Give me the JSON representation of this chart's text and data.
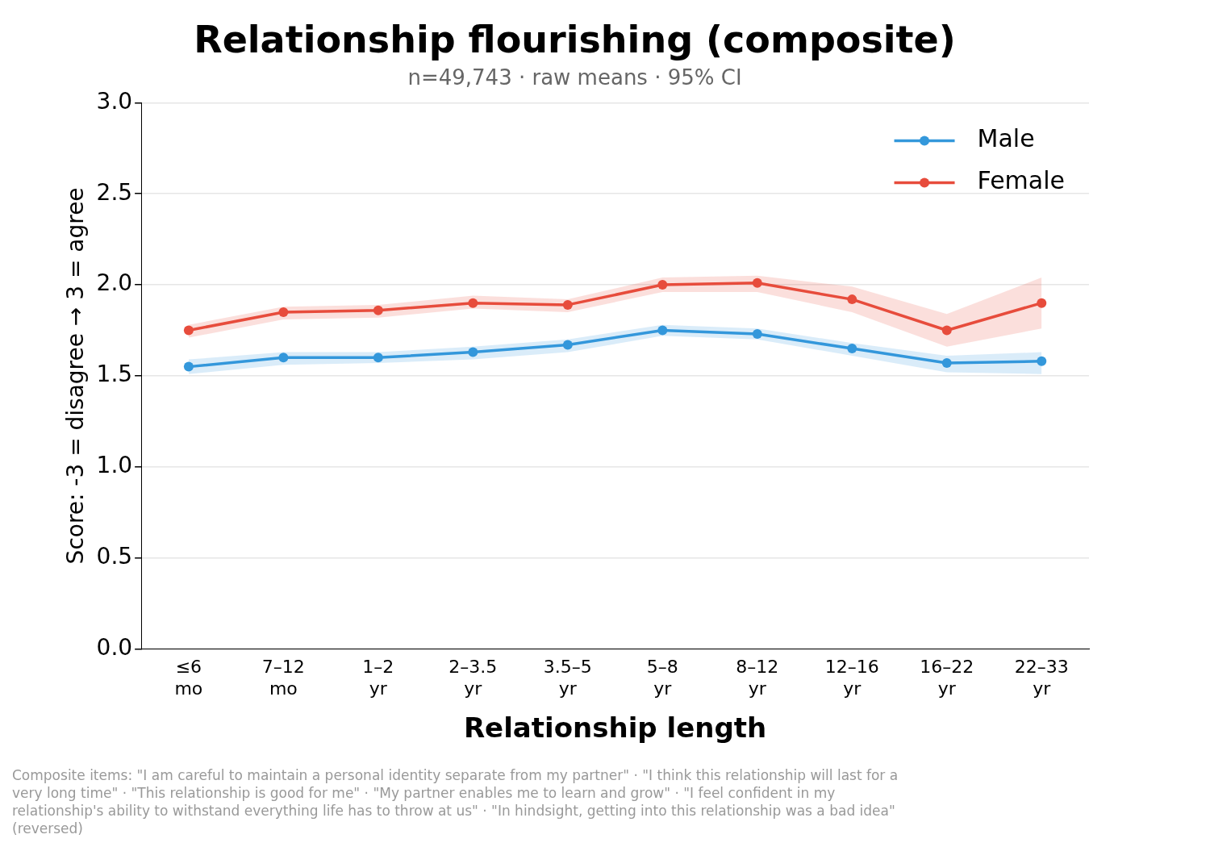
{
  "chart_data": {
    "type": "line",
    "title": "Relationship flourishing (composite)",
    "subtitle": "n=49,743 · raw means · 95% CI",
    "xlabel": "Relationship length",
    "ylabel": "Score: -3 = disagree → 3 = agree",
    "categories": [
      "≤6 mo",
      "7–12 mo",
      "1–2 yr",
      "2–3.5 yr",
      "3.5–5 yr",
      "5–8 yr",
      "8–12 yr",
      "12–16 yr",
      "16–22 yr",
      "22–33 yr"
    ],
    "series": [
      {
        "name": "Male",
        "color": "#3498db",
        "values": [
          1.55,
          1.6,
          1.6,
          1.63,
          1.67,
          1.75,
          1.73,
          1.65,
          1.57,
          1.58
        ],
        "lower": [
          1.51,
          1.56,
          1.57,
          1.59,
          1.63,
          1.72,
          1.7,
          1.61,
          1.52,
          1.51
        ],
        "upper": [
          1.59,
          1.63,
          1.63,
          1.66,
          1.7,
          1.78,
          1.76,
          1.68,
          1.61,
          1.63
        ]
      },
      {
        "name": "Female",
        "color": "#e74c3c",
        "values": [
          1.75,
          1.85,
          1.86,
          1.9,
          1.89,
          2.0,
          2.01,
          1.92,
          1.75,
          1.9
        ],
        "lower": [
          1.71,
          1.81,
          1.82,
          1.87,
          1.85,
          1.96,
          1.96,
          1.85,
          1.66,
          1.76
        ],
        "upper": [
          1.78,
          1.88,
          1.89,
          1.94,
          1.92,
          2.04,
          2.05,
          1.99,
          1.84,
          2.04
        ]
      }
    ],
    "ylim": [
      0,
      3
    ],
    "yticks": [
      {
        "value": 0,
        "label": "0.0"
      },
      {
        "value": 0.5,
        "label": "0.5"
      },
      {
        "value": 1,
        "label": "1.0"
      },
      {
        "value": 1.5,
        "label": "1.5"
      },
      {
        "value": 2,
        "label": "2.0"
      },
      {
        "value": 2.5,
        "label": "2.5"
      },
      {
        "value": 3,
        "label": "3.0"
      }
    ],
    "grid": "y",
    "legend": "top right",
    "marker": "circle",
    "line_style": "solid",
    "annotations": [
      "Composite items: \"I am careful to maintain a personal identity separate from my partner\" · \"I think this relationship will last for a very long time\" · \"This relationship is good for me\" · \"My partner enables me to learn and grow\" · \"I feel confident in my relationship's ability to withstand everything life has to throw at us\" · \"In hindsight, getting into this relationship was a bad idea\" (reversed)"
    ]
  }
}
